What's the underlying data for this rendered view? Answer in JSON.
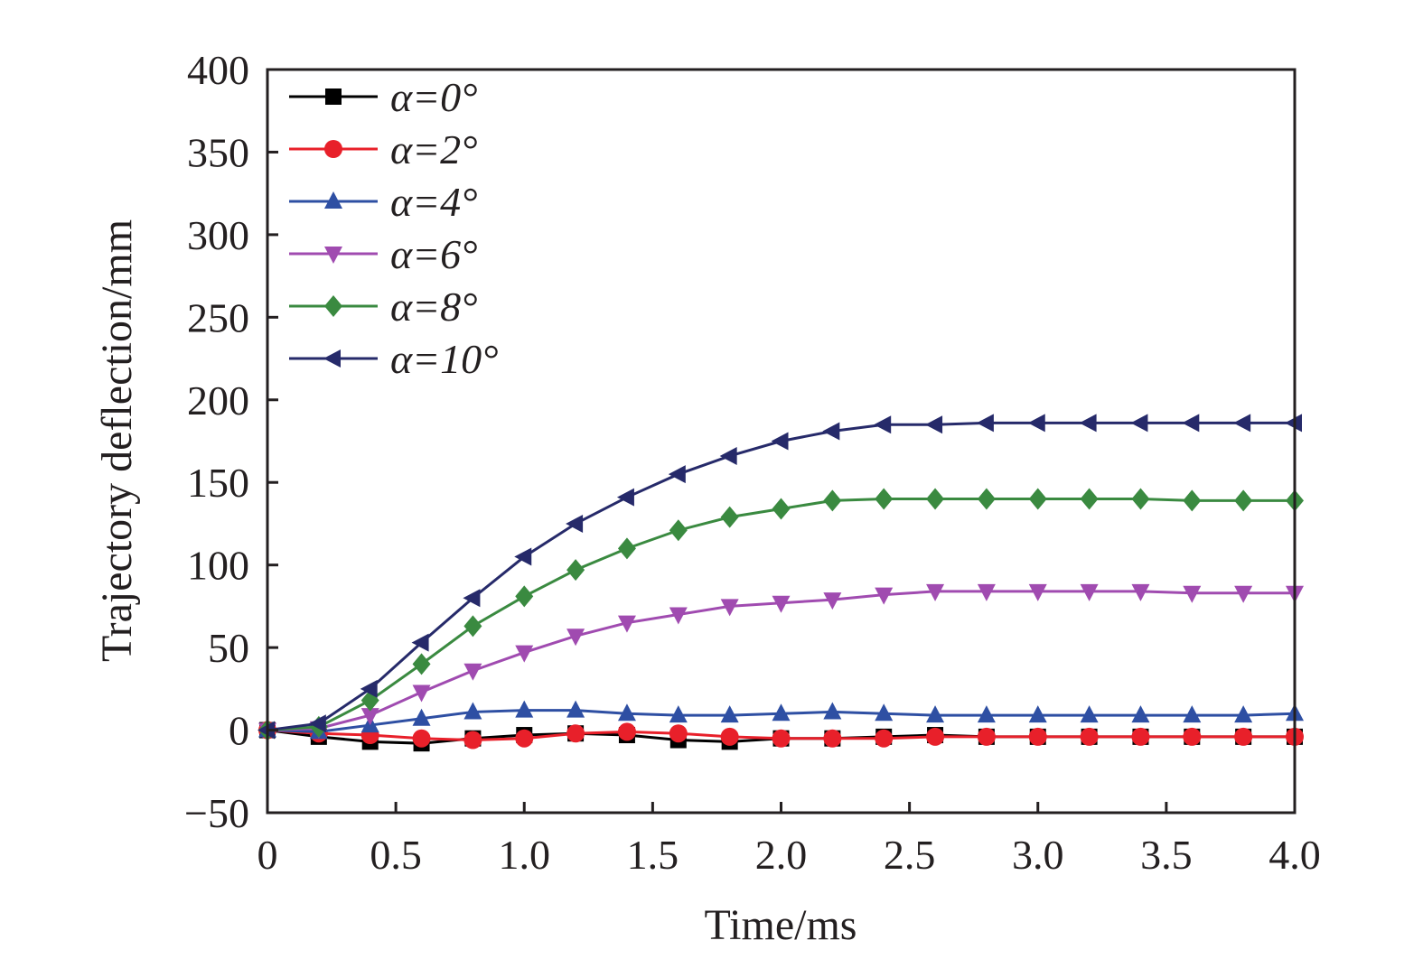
{
  "chart_data": {
    "type": "line",
    "title": "",
    "xlabel": "Time/ms",
    "ylabel": "Trajectory deflection/mm",
    "xlim": [
      0,
      4.0
    ],
    "ylim": [
      -50,
      400
    ],
    "xticks": [
      0,
      0.5,
      1.0,
      1.5,
      2.0,
      2.5,
      3.0,
      3.5,
      4.0
    ],
    "xtick_labels": [
      "0",
      "0.5",
      "1.0",
      "1.5",
      "2.0",
      "2.5",
      "3.0",
      "3.5",
      "4.0"
    ],
    "yticks": [
      -50,
      0,
      50,
      100,
      150,
      200,
      250,
      300,
      350,
      400
    ],
    "ytick_labels": [
      "−50",
      "0",
      "50",
      "100",
      "150",
      "200",
      "250",
      "300",
      "350",
      "400"
    ],
    "grid": false,
    "legend_position": "top-left",
    "x": [
      0,
      0.2,
      0.4,
      0.6,
      0.8,
      1.0,
      1.2,
      1.4,
      1.6,
      1.8,
      2.0,
      2.2,
      2.4,
      2.6,
      2.8,
      3.0,
      3.2,
      3.4,
      3.6,
      3.8,
      4.0
    ],
    "series": [
      {
        "name": "α=0°",
        "color": "#000000",
        "marker": "square",
        "values": [
          0,
          -4,
          -7,
          -8,
          -5,
          -3,
          -2,
          -3,
          -6,
          -7,
          -5,
          -5,
          -4,
          -3,
          -4,
          -4,
          -4,
          -4,
          -4,
          -4,
          -4
        ]
      },
      {
        "name": "α=2°",
        "color": "#e8202a",
        "marker": "circle",
        "values": [
          0,
          -2,
          -3,
          -5,
          -6,
          -5,
          -2,
          -1,
          -2,
          -4,
          -5,
          -5,
          -5,
          -4,
          -4,
          -4,
          -4,
          -4,
          -4,
          -4,
          -4
        ]
      },
      {
        "name": "α=4°",
        "color": "#2e4fa3",
        "marker": "triangle-up",
        "values": [
          0,
          -1,
          3,
          7,
          11,
          12,
          12,
          10,
          9,
          9,
          10,
          11,
          10,
          9,
          9,
          9,
          9,
          9,
          9,
          9,
          10
        ]
      },
      {
        "name": "α=6°",
        "color": "#a04bb0",
        "marker": "triangle-down",
        "values": [
          0,
          1,
          9,
          23,
          36,
          47,
          57,
          65,
          70,
          75,
          77,
          79,
          82,
          84,
          84,
          84,
          84,
          84,
          83,
          83,
          83
        ]
      },
      {
        "name": "α=8°",
        "color": "#3a8a40",
        "marker": "diamond",
        "values": [
          0,
          2,
          18,
          40,
          63,
          81,
          97,
          110,
          121,
          129,
          134,
          139,
          140,
          140,
          140,
          140,
          140,
          140,
          139,
          139,
          139
        ]
      },
      {
        "name": "α=10°",
        "color": "#262a6a",
        "marker": "triangle-left",
        "values": [
          0,
          4,
          25,
          53,
          80,
          105,
          125,
          141,
          155,
          166,
          175,
          181,
          185,
          185,
          186,
          186,
          186,
          186,
          186,
          186,
          186
        ]
      }
    ]
  }
}
